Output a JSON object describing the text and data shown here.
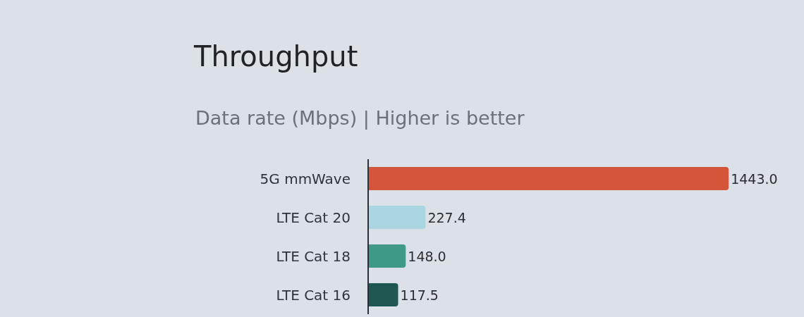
{
  "chart_data": {
    "type": "bar",
    "orientation": "horizontal",
    "title": "Throughput",
    "subtitle": "Data rate (Mbps) | Higher is better",
    "categories": [
      "5G mmWave",
      "LTE Cat 20",
      "LTE Cat 18",
      "LTE Cat 16"
    ],
    "values": [
      1443.0,
      227.4,
      148.0,
      117.5
    ],
    "colors": [
      "#d4553a",
      "#a9d6e0",
      "#3f9a83",
      "#1f5752"
    ],
    "value_labels": [
      "1443.0",
      "227.4",
      "148.0",
      "117.5"
    ],
    "tick_labels": "y"
  }
}
